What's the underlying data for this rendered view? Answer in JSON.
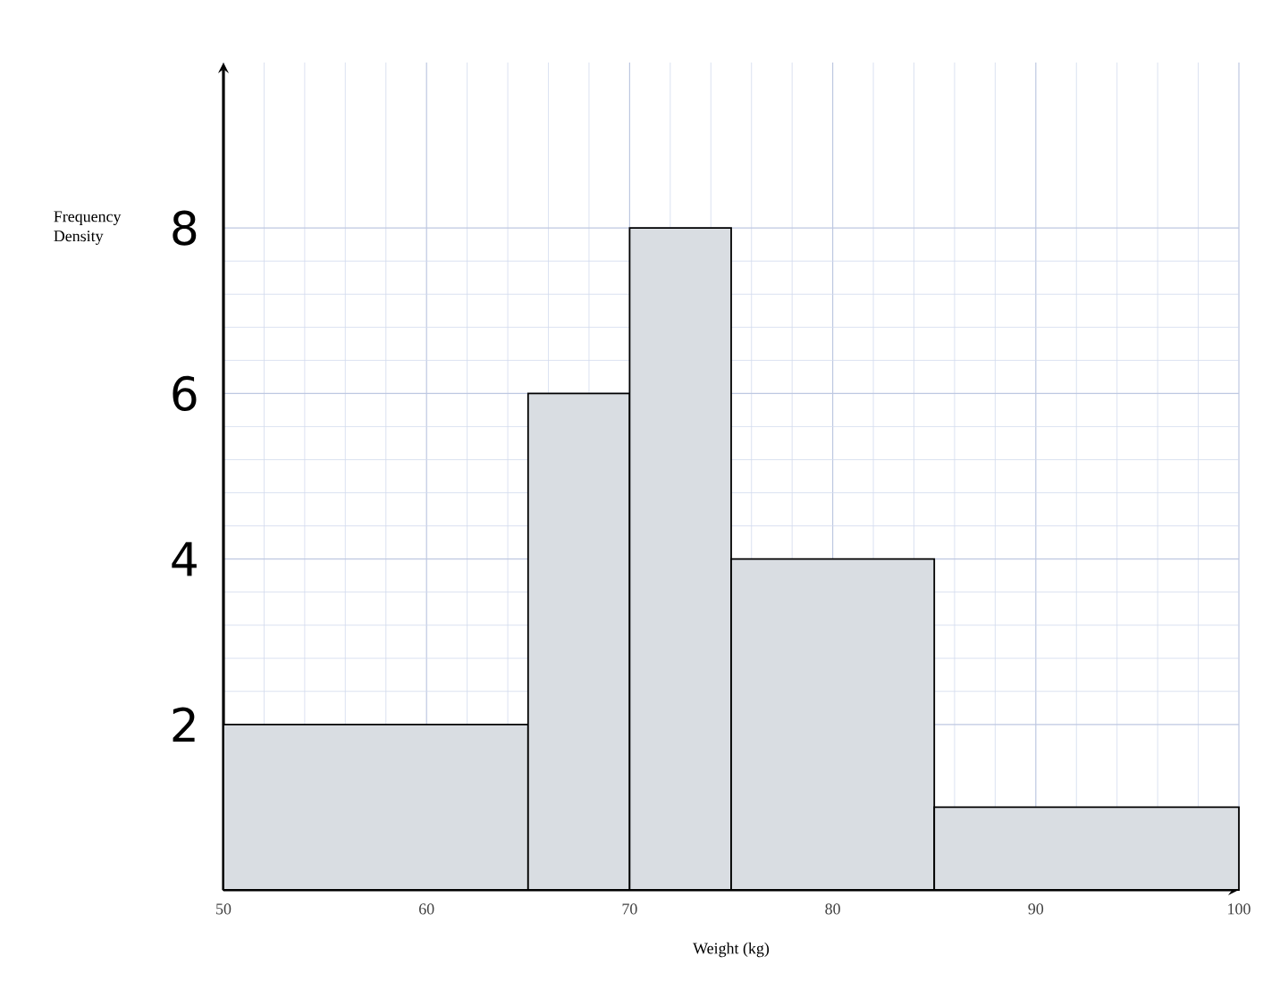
{
  "chart_data": {
    "type": "histogram",
    "xlabel": "Weight (kg)",
    "ylabel": "Frequency Density",
    "bins": [
      50,
      65,
      70,
      75,
      85,
      100
    ],
    "values": [
      2,
      6,
      8,
      4,
      1
    ],
    "color": "#d9dde2",
    "xlim": [
      50,
      100
    ],
    "ylim": [
      0,
      10
    ],
    "xticks": [
      50,
      60,
      70,
      80,
      90,
      100
    ],
    "yticks": [
      2,
      4,
      6,
      8
    ],
    "grid": true
  }
}
